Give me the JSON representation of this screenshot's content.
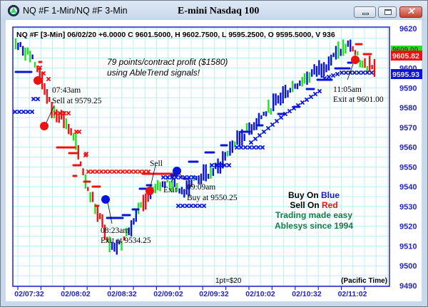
{
  "window": {
    "title": "NQ #F 1-Min/NQ #F 3-Min",
    "chart_title": "E-mini Nasdaq 100",
    "buttons": {
      "minimize": "minimize",
      "maximize": "maximize",
      "close": "✕"
    }
  },
  "info_line": "NQ #F [3-Min] 06/02/20  +6.0000 C 9601.5000, H 9602.7500, L 9595.2500, O 9595.5000, V 936",
  "annotations": {
    "headline1": "79 points/contract profit ($1580)",
    "headline2": "using AbleTrend signals!",
    "sell1_time": "07:43am",
    "sell1_text": "Sell at 9579.25",
    "exit1_time": "08:23am",
    "exit1_text": "Exit at 9534.25",
    "sell2": "Sell",
    "exit2": "Exit",
    "buy1_time": "09:09am",
    "buy1_text": "Buy at 9550.25",
    "exit3_time": "11:05am",
    "exit3_text": "Exit at 9601.00",
    "legend_buy_prefix": "Buy On ",
    "legend_buy_color": "Blue",
    "legend_sell_prefix": "Sell On ",
    "legend_sell_color": "Red",
    "legend_line3": "Trading made easy",
    "legend_line4": "Ablesys since 1994",
    "point_value": "1pt=$20",
    "timezone": "(Pacific Time)"
  },
  "price_tags": {
    "green": "9609.00",
    "red": "9605.82",
    "blue": "9595.93"
  },
  "colors": {
    "up_blue": "#0a14d8",
    "down_red": "#ee1111",
    "neutral_green": "#22e022",
    "axis": "#2222cc",
    "grid": "#b8f0f4",
    "legend_green": "#1a7a4a"
  },
  "chart_data": {
    "type": "bar",
    "subtype": "ohlc-price-bars-with-trend-signals",
    "title": "E-mini Nasdaq 100",
    "symbol": "NQ #F [3-Min]",
    "xlabel": "(Pacific Time)",
    "ylabel": "",
    "ylim": [
      9490,
      9620
    ],
    "grid": true,
    "y_ticks": [
      9620,
      9610,
      9600,
      9590,
      9580,
      9570,
      9560,
      9550,
      9540,
      9530,
      9520,
      9510,
      9500,
      9490
    ],
    "x_ticks": [
      "02/07:32",
      "02/08:02",
      "02/08:32",
      "02/09:02",
      "02/09:32",
      "02/10:02",
      "02/10:32",
      "02/11:02"
    ],
    "last_bar": {
      "date": "06/02/20",
      "change": 6.0,
      "close": 9601.5,
      "high": 9602.75,
      "low": 9595.25,
      "open": 9595.5,
      "volume": 936
    },
    "trades": [
      {
        "time": "07:43am",
        "action": "Sell",
        "price": 9579.25
      },
      {
        "time": "08:23am",
        "action": "Exit",
        "price": 9534.25
      },
      {
        "time": "09:09am",
        "action": "Buy",
        "price": 9550.25
      },
      {
        "time": "11:05am",
        "action": "Exit",
        "price": 9601.0
      }
    ],
    "profit_points": 79,
    "profit_dollars": 1580,
    "price_markers": {
      "green": 9609.0,
      "red": 9605.82,
      "blue": 9595.93
    },
    "series": [
      {
        "name": "price_close_approx",
        "x": [
          "07:30",
          "07:35",
          "07:40",
          "07:43",
          "07:50",
          "07:55",
          "08:00",
          "08:05",
          "08:10",
          "08:15",
          "08:20",
          "08:23",
          "08:30",
          "08:40",
          "08:50",
          "09:00",
          "09:05",
          "09:09",
          "09:20",
          "09:30",
          "09:40",
          "09:50",
          "10:00",
          "10:10",
          "10:20",
          "10:30",
          "10:40",
          "10:50",
          "11:00",
          "11:05",
          "11:10"
        ],
        "values": [
          9612,
          9608,
          9598,
          9579,
          9575,
          9562,
          9540,
          9525,
          9510,
          9512,
          9525,
          9534,
          9540,
          9542,
          9538,
          9544,
          9546,
          9550,
          9560,
          9566,
          9572,
          9578,
          9584,
          9590,
          9594,
          9598,
          9602,
          9608,
          9612,
          9601,
          9602
        ]
      }
    ]
  }
}
